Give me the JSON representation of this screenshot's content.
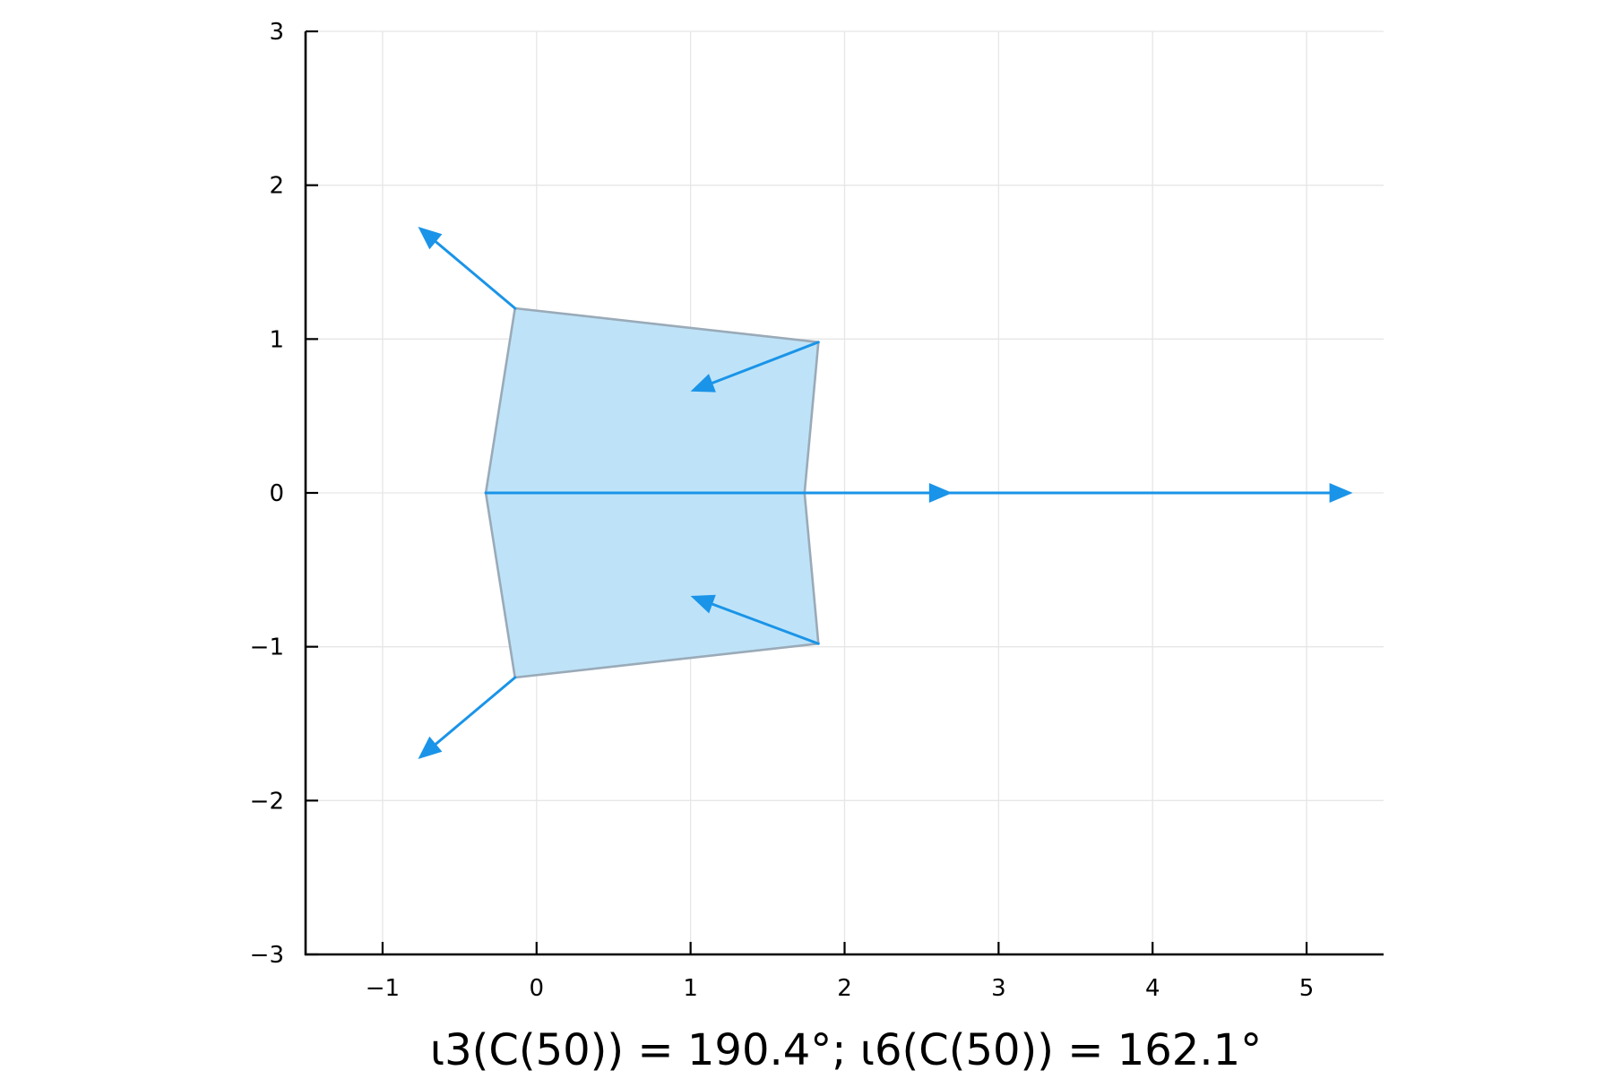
{
  "chart_data": {
    "type": "polygon-vector-plot",
    "xlim": [
      -1.5,
      5.5
    ],
    "ylim": [
      -3,
      3
    ],
    "grid": true,
    "legend": "none",
    "xlabel": "ι3(C(50)) = 190.4°; ι6(C(50)) = 162.1°",
    "x_ticks": [
      {
        "value": -1,
        "label": "−1"
      },
      {
        "value": 0,
        "label": "0"
      },
      {
        "value": 1,
        "label": "1"
      },
      {
        "value": 2,
        "label": "2"
      },
      {
        "value": 3,
        "label": "3"
      },
      {
        "value": 4,
        "label": "4"
      },
      {
        "value": 5,
        "label": "5"
      }
    ],
    "y_ticks": [
      {
        "value": -3,
        "label": "−3"
      },
      {
        "value": -2,
        "label": "−2"
      },
      {
        "value": -1,
        "label": "−1"
      },
      {
        "value": 0,
        "label": "0"
      },
      {
        "value": 1,
        "label": "1"
      },
      {
        "value": 2,
        "label": "2"
      },
      {
        "value": 3,
        "label": "3"
      }
    ],
    "polygon": {
      "points": [
        [
          -0.33,
          0.0
        ],
        [
          -0.14,
          1.2
        ],
        [
          1.83,
          0.98
        ],
        [
          1.74,
          0.0
        ],
        [
          1.83,
          -0.98
        ],
        [
          -0.14,
          -1.2
        ]
      ],
      "fill": "#bee3f8",
      "stroke": "#9aaab8"
    },
    "arrows": [
      {
        "from": [
          -0.33,
          0.0
        ],
        "to": [
          2.7,
          0.0
        ]
      },
      {
        "from": [
          1.74,
          0.0
        ],
        "to": [
          5.3,
          0.0
        ]
      },
      {
        "from": [
          -0.14,
          1.2
        ],
        "to": [
          -0.77,
          1.73
        ]
      },
      {
        "from": [
          1.83,
          0.98
        ],
        "to": [
          1.0,
          0.66
        ]
      },
      {
        "from": [
          1.83,
          -0.98
        ],
        "to": [
          1.0,
          -0.67
        ]
      },
      {
        "from": [
          -0.14,
          -1.2
        ],
        "to": [
          -0.77,
          -1.73
        ]
      }
    ],
    "colors": {
      "arrow": "#1a94e8",
      "grid": "#e6e6e6",
      "axis": "#000000"
    }
  }
}
